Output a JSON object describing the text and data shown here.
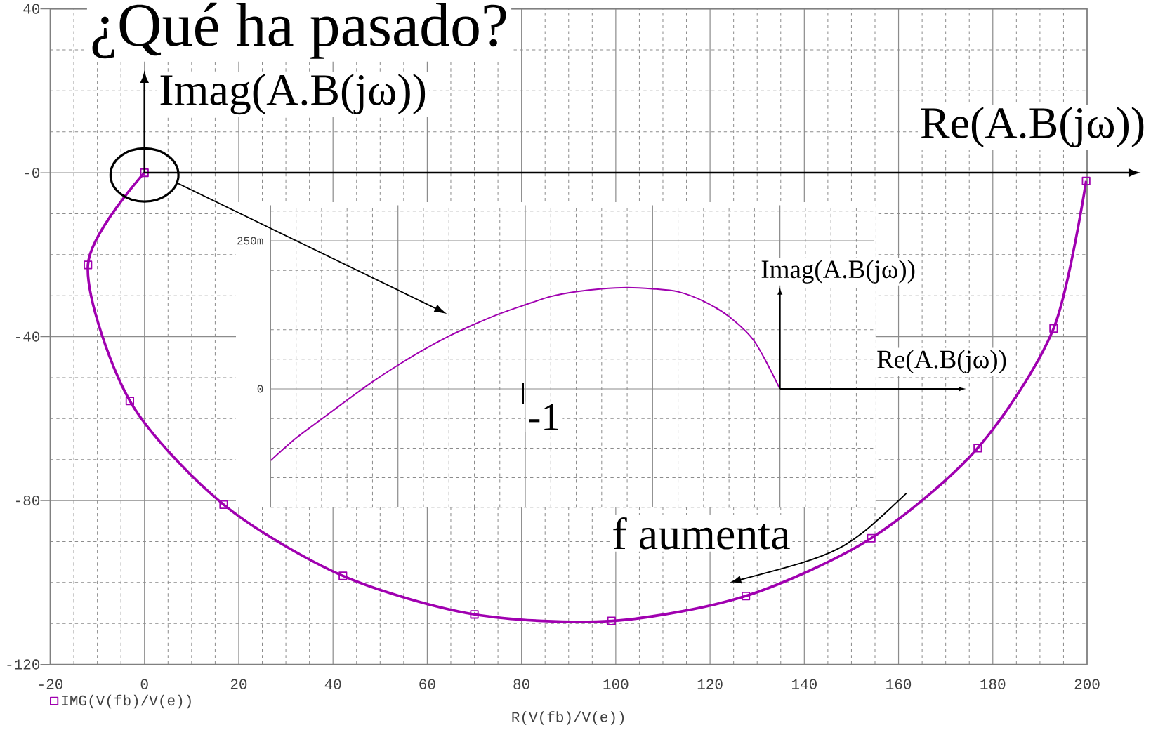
{
  "chart_data": [
    {
      "type": "line",
      "title": "¿Qué ha pasado?",
      "xlabel": "R(V(fb)/V(e))",
      "series": [
        {
          "name": "IMG(V(fb)/V(e))",
          "color": "#a000b0",
          "x": [
            0,
            -12.0,
            -3.1,
            16.8,
            42.1,
            70.0,
            99.1,
            127.6,
            154.2,
            176.8,
            192.9,
            199.8
          ],
          "values": [
            0,
            -22.5,
            -55.7,
            -81.0,
            -98.4,
            -107.8,
            -109.4,
            -103.3,
            -89.2,
            -67.2,
            -38.0,
            -2.0
          ]
        }
      ],
      "xlim": [
        -20,
        200
      ],
      "ylim": [
        -120,
        40
      ],
      "xticks": [
        -20,
        0,
        20,
        40,
        60,
        80,
        100,
        120,
        140,
        160,
        180,
        200
      ],
      "yticks": [
        -120,
        -80,
        -40,
        {
          "value": 0,
          "label": "-0"
        },
        40
      ],
      "grid": true,
      "legend": "bottom left",
      "marker": "square",
      "ref_lines": [
        {
          "axis": "x",
          "value": 0,
          "label": "Imag(A.B(jω))"
        },
        {
          "axis": "y",
          "value": 0,
          "label": "Re(A.B(jω))"
        }
      ],
      "annotations": [
        "f aumenta"
      ]
    },
    {
      "type": "line",
      "categories": [
        null,
        null,
        null,
        null,
        null,
        null,
        null,
        null,
        null,
        null,
        null,
        null,
        null,
        null,
        null,
        null,
        null,
        null,
        null,
        null,
        null
      ],
      "series": [
        {
          "color": "#a000b0",
          "values": [
            -121,
            -83,
            -51,
            -19,
            12,
            40,
            66,
            89,
            109,
            127,
            142,
            156,
            164,
            169,
            171,
            169,
            164,
            148,
            122,
            80,
            0
          ]
        }
      ],
      "ylim": [
        -200,
        310
      ],
      "yticks": [
        0,
        {
          "value": 250,
          "label": "250m"
        }
      ],
      "grid": true,
      "ref_lines": [
        {
          "axis": "y",
          "value": 0,
          "label": "Re(A.B(jω))"
        }
      ],
      "annotations": [
        "Imag(A.B(jω))",
        "-1"
      ]
    }
  ]
}
